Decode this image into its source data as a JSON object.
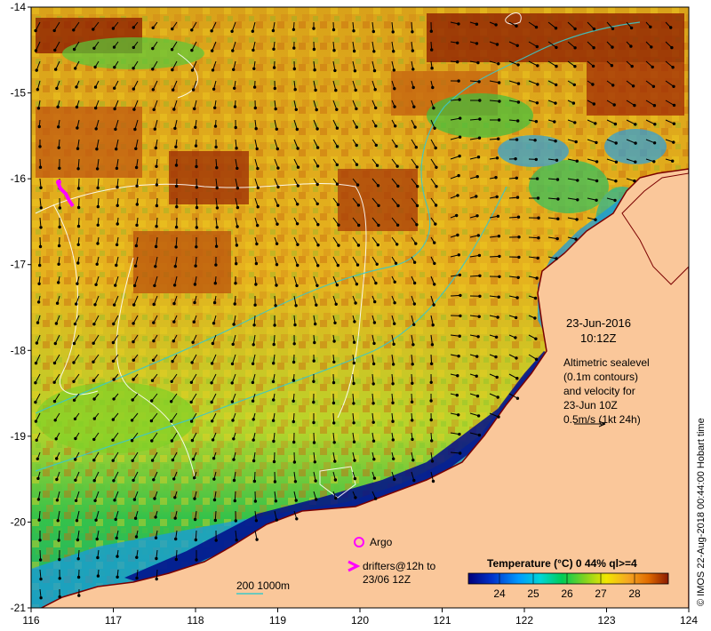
{
  "map": {
    "lon_ticks": [
      "116",
      "117",
      "118",
      "119",
      "120",
      "121",
      "122",
      "123",
      "124"
    ],
    "lat_ticks": [
      "-14",
      "-15",
      "-16",
      "-17",
      "-18",
      "-19",
      "-20",
      "-21"
    ],
    "lon_range": [
      116,
      124
    ],
    "lat_range": [
      -14,
      -21
    ]
  },
  "annotation": {
    "date": "23-Jun-2016",
    "time": "10:12Z",
    "desc_lines": [
      "Altimetric sealevel",
      "(0.1m contours)",
      "and velocity for",
      "23-Jun 10Z",
      "0.5m/s (1kt 24h)"
    ]
  },
  "legend": {
    "argo": "Argo",
    "drifters_line1": "drifters@12h to",
    "drifters_line2": "23/06 12Z",
    "bathy": "200  1000m"
  },
  "colorbar": {
    "title": "Temperature (°C) 0 44% ql>=4",
    "ticks": [
      "24",
      "25",
      "26",
      "27",
      "28"
    ],
    "colors": [
      "#00007a",
      "#0033cc",
      "#0099ff",
      "#00d6d6",
      "#00cc55",
      "#7ed321",
      "#f2e600",
      "#f5a623",
      "#e06b00",
      "#8b1a00"
    ]
  },
  "credit": "© IMOS 22-Aug-2018 00:44:00 Hobart time"
}
